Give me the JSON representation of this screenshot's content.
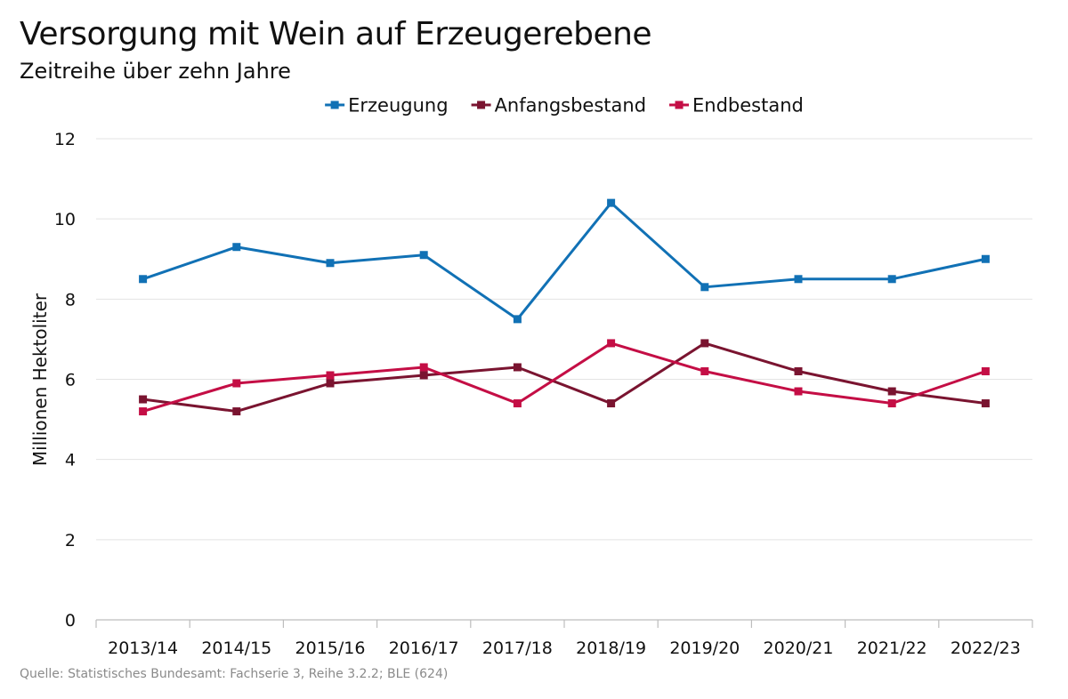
{
  "header": {
    "title": "Versorgung mit Wein auf Erzeugerebene",
    "subtitle": "Zeitreihe über zehn Jahre"
  },
  "footer": {
    "source": "Quelle: Statistisches Bundesamt: Fachserie 3, Reihe 3.2.2; BLE (624)"
  },
  "chart_data": {
    "type": "line",
    "title": "Versorgung mit Wein auf Erzeugerebene",
    "subtitle": "Zeitreihe über zehn Jahre",
    "ylabel": "Millionen Hektoliter",
    "xlabel": "",
    "ylim": [
      0,
      12
    ],
    "yticks": [
      0,
      2,
      4,
      6,
      8,
      10,
      12
    ],
    "grid": "horizontal",
    "legend_position": "top-center",
    "categories": [
      "2013/14",
      "2014/15",
      "2015/16",
      "2016/17",
      "2017/18",
      "2018/19",
      "2019/20",
      "2020/21",
      "2021/22",
      "2022/23"
    ],
    "series": [
      {
        "name": "Erzeugung",
        "color": "#1171b5",
        "values": [
          8.5,
          9.3,
          8.9,
          9.1,
          7.5,
          10.4,
          8.3,
          8.5,
          8.5,
          9.0
        ]
      },
      {
        "name": "Anfangsbestand",
        "color": "#7a1430",
        "values": [
          5.5,
          5.2,
          5.9,
          6.1,
          6.3,
          5.4,
          6.9,
          6.2,
          5.7,
          5.4
        ]
      },
      {
        "name": "Endbestand",
        "color": "#c40e45",
        "values": [
          5.2,
          5.9,
          6.1,
          6.3,
          5.4,
          6.9,
          6.2,
          5.7,
          5.4,
          6.2
        ]
      }
    ]
  }
}
